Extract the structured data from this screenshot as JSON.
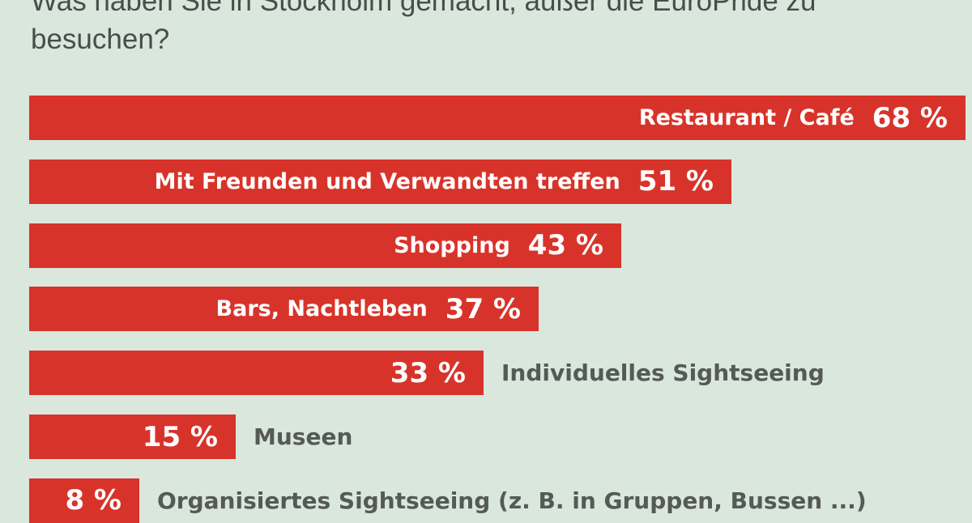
{
  "chart_data": {
    "type": "bar",
    "orientation": "horizontal",
    "title": "Was haben Sie in Stockholm gemacht, außer die EuroPride zu besuchen?",
    "categories": [
      "Restaurant / Café",
      "Mit Freunden und Verwandten treffen",
      "Shopping",
      "Bars, Nachtleben",
      "Individuelles Sightseeing",
      "Museen",
      "Organisiertes Sightseeing (z. B. in Gruppen, Bussen ...)"
    ],
    "values": [
      68,
      51,
      43,
      37,
      33,
      15,
      8
    ],
    "value_labels": [
      "68 %",
      "51 %",
      "43 %",
      "37 %",
      "33 %",
      "15 %",
      "8 %"
    ],
    "unit": "%",
    "xlim": [
      0,
      68
    ],
    "grid": false,
    "colors": {
      "bar": "#d8332a",
      "background": "#dae7dd",
      "label_outside": "#555a57",
      "label_inside": "#ffffff"
    }
  }
}
